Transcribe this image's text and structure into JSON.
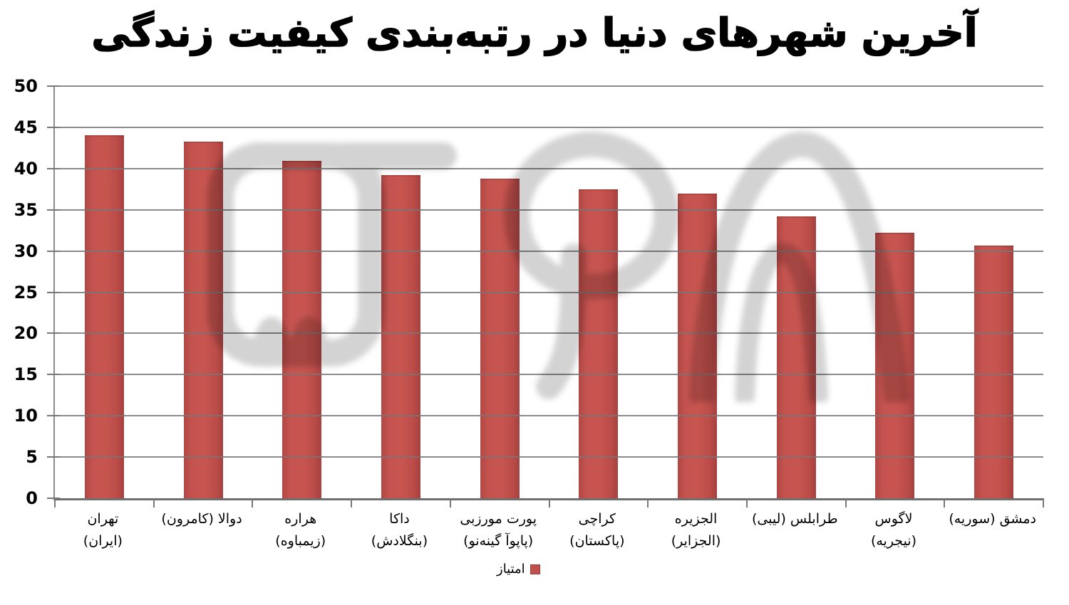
{
  "title": "آخرین شهرهای دنیا در رتبه‌بندی کیفیت زندگی",
  "legend": {
    "label": "امتیاز",
    "swatch_color": "#C0504D"
  },
  "watermark": {
    "name": "gray-logo-watermark"
  },
  "y_axis": {
    "ticks": [
      "0",
      "5",
      "10",
      "15",
      "20",
      "25",
      "30",
      "35",
      "40",
      "45",
      "50"
    ]
  },
  "chart_data": {
    "type": "bar",
    "title": "آخرین شهرهای دنیا در رتبه‌بندی کیفیت زندگی",
    "series": [
      {
        "name": "امتیاز",
        "values": [
          44.0,
          43.3,
          40.9,
          39.2,
          38.8,
          37.5,
          37.0,
          34.2,
          32.2,
          30.7
        ]
      }
    ],
    "categories": [
      "تهران (ایران)",
      "دوالا (کامرون)",
      "هراره (زیمباوه)",
      "داکا (بنگلادش)",
      "پورت مورزبی (پاپوآ گینه‌نو)",
      "کراچی (پاکستان)",
      "الجزیره (الجزایر)",
      "طرابلس (لیبی)",
      "لاگوس (نیجریه)",
      "دمشق (سوریه)"
    ],
    "category_label_lines": [
      [
        "تهران",
        "(ایران)"
      ],
      [
        "دوالا (کامرون)",
        ""
      ],
      [
        "هراره",
        "(زیمباوه)"
      ],
      [
        "داکا",
        "(بنگلادش)"
      ],
      [
        "پورت مورزبی",
        "(پاپوآ گینه‌نو)"
      ],
      [
        "کراچی",
        "(پاکستان)"
      ],
      [
        "الجزیره",
        "(الجزایر)"
      ],
      [
        "طرابلس (لیبی)",
        ""
      ],
      [
        "لاگوس",
        "(نیجریه)"
      ],
      [
        "دمشق (سوریه)",
        ""
      ]
    ],
    "xlabel": "",
    "ylabel": "",
    "ylim": [
      0,
      50
    ],
    "ytick_step": 5,
    "grid": true,
    "bar_color": "#C0504D",
    "gridline_color": "#777777",
    "legend_position": "bottom-center",
    "text_direction": "rtl"
  }
}
